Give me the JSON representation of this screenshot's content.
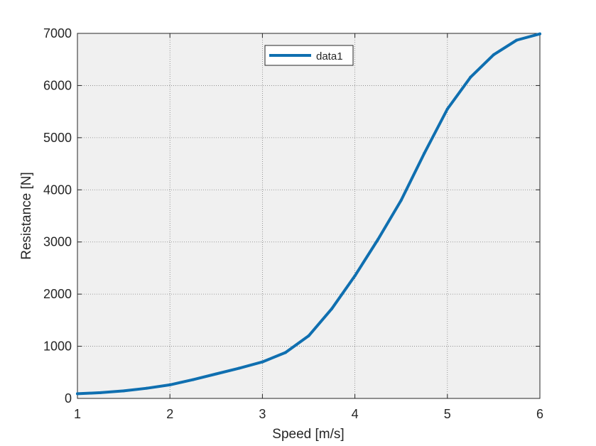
{
  "chart_data": {
    "type": "line",
    "title": "",
    "xlabel": "Speed [m/s]",
    "ylabel": "Resistance [N]",
    "xlim": [
      1,
      6
    ],
    "ylim": [
      0,
      7000
    ],
    "x_ticks": [
      "1",
      "2",
      "3",
      "4",
      "5",
      "6"
    ],
    "y_ticks": [
      "0",
      "1000",
      "2000",
      "3000",
      "4000",
      "5000",
      "6000",
      "7000"
    ],
    "grid": true,
    "legend_position": "top-center",
    "colors": {
      "plot_background": "#f0f0f0",
      "line": "#0f6fb0"
    },
    "series": [
      {
        "name": "data1",
        "x": [
          1,
          1.25,
          1.5,
          1.75,
          2,
          2.25,
          2.5,
          2.75,
          3,
          3.25,
          3.5,
          3.75,
          4,
          4.25,
          4.5,
          4.75,
          5,
          5.25,
          5.5,
          5.75,
          6
        ],
        "y": [
          90,
          110,
          145,
          195,
          260,
          360,
          470,
          580,
          700,
          880,
          1200,
          1720,
          2350,
          3050,
          3800,
          4700,
          5550,
          6160,
          6590,
          6870,
          6990
        ]
      }
    ]
  }
}
